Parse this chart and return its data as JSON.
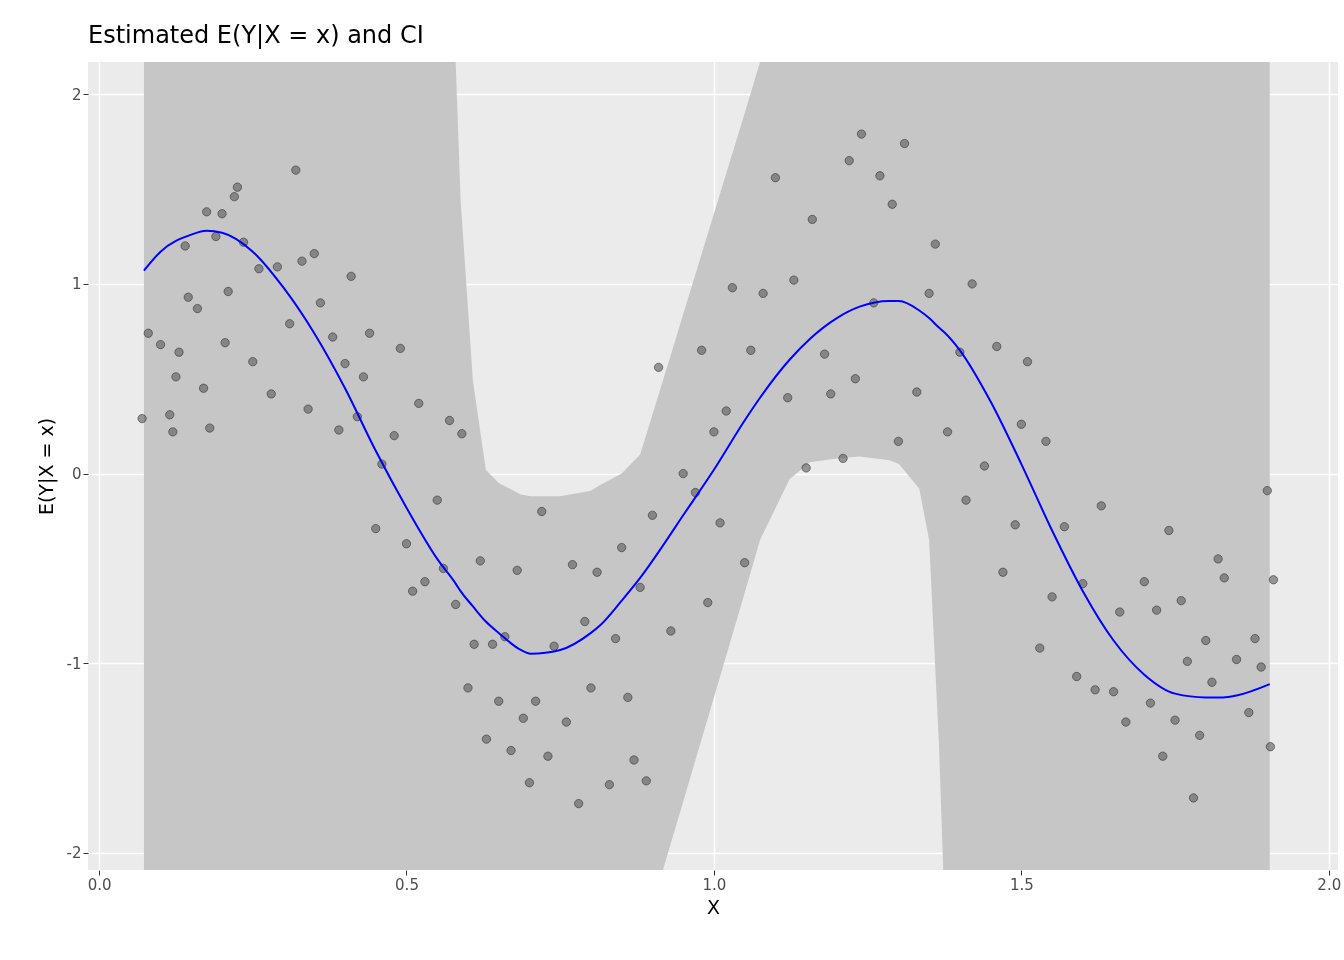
{
  "chart_data": {
    "type": "scatter",
    "title": "Estimated E(Y|X = x) and CI",
    "xlabel": "X",
    "ylabel": "E(Y|X = x)",
    "xlim": [
      -0.018,
      2.015
    ],
    "ylim": [
      -2.09,
      2.17
    ],
    "xticks": [
      {
        "value": 0,
        "label": "0.0"
      },
      0.5,
      {
        "value": 1,
        "label": "1.0"
      },
      1.5,
      {
        "value": 2,
        "label": "2.0"
      }
    ],
    "yticks": [
      -2,
      -1,
      0,
      1,
      2
    ],
    "grid": true,
    "series": [
      {
        "color": "#5a5a5a",
        "marker": "circle",
        "x": [
          0.07,
          0.08,
          0.1,
          0.115,
          0.12,
          0.125,
          0.13,
          0.14,
          0.145,
          0.16,
          0.17,
          0.175,
          0.18,
          0.19,
          0.2,
          0.205,
          0.21,
          0.22,
          0.225,
          0.235,
          0.25,
          0.26,
          0.28,
          0.29,
          0.31,
          0.32,
          0.33,
          0.34,
          0.35,
          0.36,
          0.38,
          0.39,
          0.4,
          0.41,
          0.42,
          0.43,
          0.44,
          0.45,
          0.46,
          0.48,
          0.49,
          0.5,
          0.51,
          0.52,
          0.53,
          0.55,
          0.56,
          0.57,
          0.58,
          0.59,
          0.6,
          0.61,
          0.62,
          0.63,
          0.64,
          0.65,
          0.66,
          0.67,
          0.68,
          0.69,
          0.7,
          0.71,
          0.72,
          0.73,
          0.74,
          0.76,
          0.77,
          0.78,
          0.79,
          0.8,
          0.81,
          0.83,
          0.84,
          0.85,
          0.86,
          0.87,
          0.88,
          0.89,
          0.9,
          0.91,
          0.93,
          0.95,
          0.97,
          0.98,
          0.99,
          1.0,
          1.01,
          1.02,
          1.03,
          1.05,
          1.06,
          1.08,
          1.1,
          1.12,
          1.13,
          1.15,
          1.16,
          1.18,
          1.19,
          1.21,
          1.22,
          1.23,
          1.24,
          1.26,
          1.27,
          1.29,
          1.3,
          1.31,
          1.33,
          1.35,
          1.36,
          1.38,
          1.4,
          1.41,
          1.42,
          1.44,
          1.46,
          1.47,
          1.49,
          1.5,
          1.51,
          1.53,
          1.54,
          1.55,
          1.57,
          1.59,
          1.6,
          1.62,
          1.63,
          1.65,
          1.66,
          1.67,
          1.7,
          1.71,
          1.72,
          1.73,
          1.74,
          1.75,
          1.76,
          1.77,
          1.78,
          1.79,
          1.8,
          1.81,
          1.82,
          1.83,
          1.85,
          1.87,
          1.88,
          1.89,
          1.9,
          1.905,
          1.91
        ],
        "values": [
          0.29,
          0.74,
          0.68,
          0.31,
          0.22,
          0.51,
          0.64,
          1.2,
          0.93,
          0.87,
          0.45,
          1.38,
          0.24,
          1.25,
          1.37,
          0.69,
          0.96,
          1.46,
          1.51,
          1.22,
          0.59,
          1.08,
          0.42,
          1.09,
          0.79,
          1.6,
          1.12,
          0.34,
          1.16,
          0.9,
          0.72,
          0.23,
          0.58,
          1.04,
          0.3,
          0.51,
          0.74,
          -0.29,
          0.05,
          0.2,
          0.66,
          -0.37,
          -0.62,
          0.37,
          -0.57,
          -0.14,
          -0.5,
          0.28,
          -0.69,
          0.21,
          -1.13,
          -0.9,
          -0.46,
          -1.4,
          -0.9,
          -1.2,
          -0.86,
          -1.46,
          -0.51,
          -1.29,
          -1.63,
          -1.2,
          -0.2,
          -1.49,
          -0.91,
          -1.31,
          -0.48,
          -1.74,
          -0.78,
          -1.13,
          -0.52,
          -1.64,
          -0.87,
          -0.39,
          -1.18,
          -1.51,
          -0.6,
          -1.62,
          -0.22,
          0.56,
          -0.83,
          0.0,
          -0.1,
          0.65,
          -0.68,
          0.22,
          -0.26,
          0.33,
          0.98,
          -0.47,
          0.65,
          0.95,
          1.56,
          0.4,
          1.02,
          0.03,
          1.34,
          0.63,
          0.42,
          0.08,
          1.65,
          0.5,
          1.79,
          0.9,
          1.57,
          1.42,
          0.17,
          1.74,
          0.43,
          0.95,
          1.21,
          0.22,
          0.64,
          -0.14,
          1.0,
          0.04,
          0.67,
          -0.52,
          -0.27,
          0.26,
          0.59,
          -0.92,
          0.17,
          -0.65,
          -0.28,
          -1.07,
          -0.58,
          -1.14,
          -0.17,
          -1.15,
          -0.73,
          -1.31,
          -0.57,
          -1.21,
          -0.72,
          -1.49,
          -0.3,
          -1.3,
          -0.67,
          -0.99,
          -1.71,
          -1.38,
          -0.88,
          -1.1,
          -0.45,
          -0.55,
          -0.98,
          -1.26,
          -0.87,
          -1.02,
          -0.09,
          -1.44,
          -0.56
        ]
      },
      {
        "type": "line",
        "color": "#0000ff",
        "x": [
          0.073,
          0.1,
          0.15,
          0.175,
          0.2,
          0.25,
          0.3,
          0.35,
          0.4,
          0.45,
          0.5,
          0.55,
          0.58,
          0.588,
          0.608,
          0.629,
          0.65,
          0.686,
          0.702,
          0.75,
          0.8,
          0.815,
          0.85,
          0.88,
          0.917,
          0.95,
          1.0,
          1.05,
          1.075,
          1.123,
          1.156,
          1.2,
          1.237,
          1.285,
          1.301,
          1.334,
          1.35,
          1.366,
          1.373,
          1.4,
          1.45,
          1.5,
          1.55,
          1.6,
          1.65,
          1.7,
          1.75,
          1.8,
          1.828,
          1.85,
          1.904
        ],
        "values": [
          1.07,
          1.17,
          1.26,
          1.28,
          1.27,
          1.17,
          0.98,
          0.74,
          0.45,
          0.12,
          -0.18,
          -0.45,
          -0.58,
          -0.62,
          -0.7,
          -0.78,
          -0.84,
          -0.93,
          -0.95,
          -0.93,
          -0.84,
          -0.8,
          -0.67,
          -0.55,
          -0.38,
          -0.22,
          0.02,
          0.28,
          0.4,
          0.6,
          0.71,
          0.82,
          0.88,
          0.91,
          0.91,
          0.86,
          0.82,
          0.77,
          0.75,
          0.65,
          0.38,
          0.05,
          -0.3,
          -0.62,
          -0.88,
          -1.06,
          -1.16,
          -1.18,
          -1.18,
          -1.17,
          -1.11
        ],
        "lower": [
          -2.09,
          -2.09,
          -2.09,
          -2.09,
          -2.09,
          -2.09,
          -2.09,
          -2.09,
          -2.09,
          -2.09,
          -2.09,
          -2.09,
          -2.09,
          -2.09,
          -2.09,
          -2.09,
          -2.09,
          -2.09,
          -2.09,
          -2.09,
          -2.09,
          -2.09,
          -2.09,
          -2.09,
          -2.09,
          -1.73,
          -1.18,
          -0.63,
          -0.35,
          -0.03,
          0.06,
          0.08,
          0.09,
          0.07,
          0.05,
          -0.08,
          -0.35,
          -1.43,
          -2.09,
          -2.09,
          -2.09,
          -2.09,
          -2.09,
          -2.09,
          -2.09,
          -2.09,
          -2.09,
          -2.09,
          -2.09,
          -2.09,
          -2.09
        ],
        "upper": [
          2.17,
          2.17,
          2.17,
          2.17,
          2.17,
          2.17,
          2.17,
          2.17,
          2.17,
          2.17,
          2.17,
          2.17,
          2.17,
          1.44,
          0.49,
          0.02,
          -0.05,
          -0.11,
          -0.12,
          -0.12,
          -0.09,
          -0.06,
          0.0,
          0.1,
          0.49,
          0.84,
          1.37,
          1.9,
          2.17,
          2.17,
          2.17,
          2.17,
          2.17,
          2.17,
          2.17,
          2.17,
          2.17,
          2.17,
          2.17,
          2.17,
          2.17,
          2.17,
          2.17,
          2.17,
          2.17,
          2.17,
          2.17,
          2.17,
          2.17,
          2.17,
          2.17
        ]
      }
    ]
  }
}
